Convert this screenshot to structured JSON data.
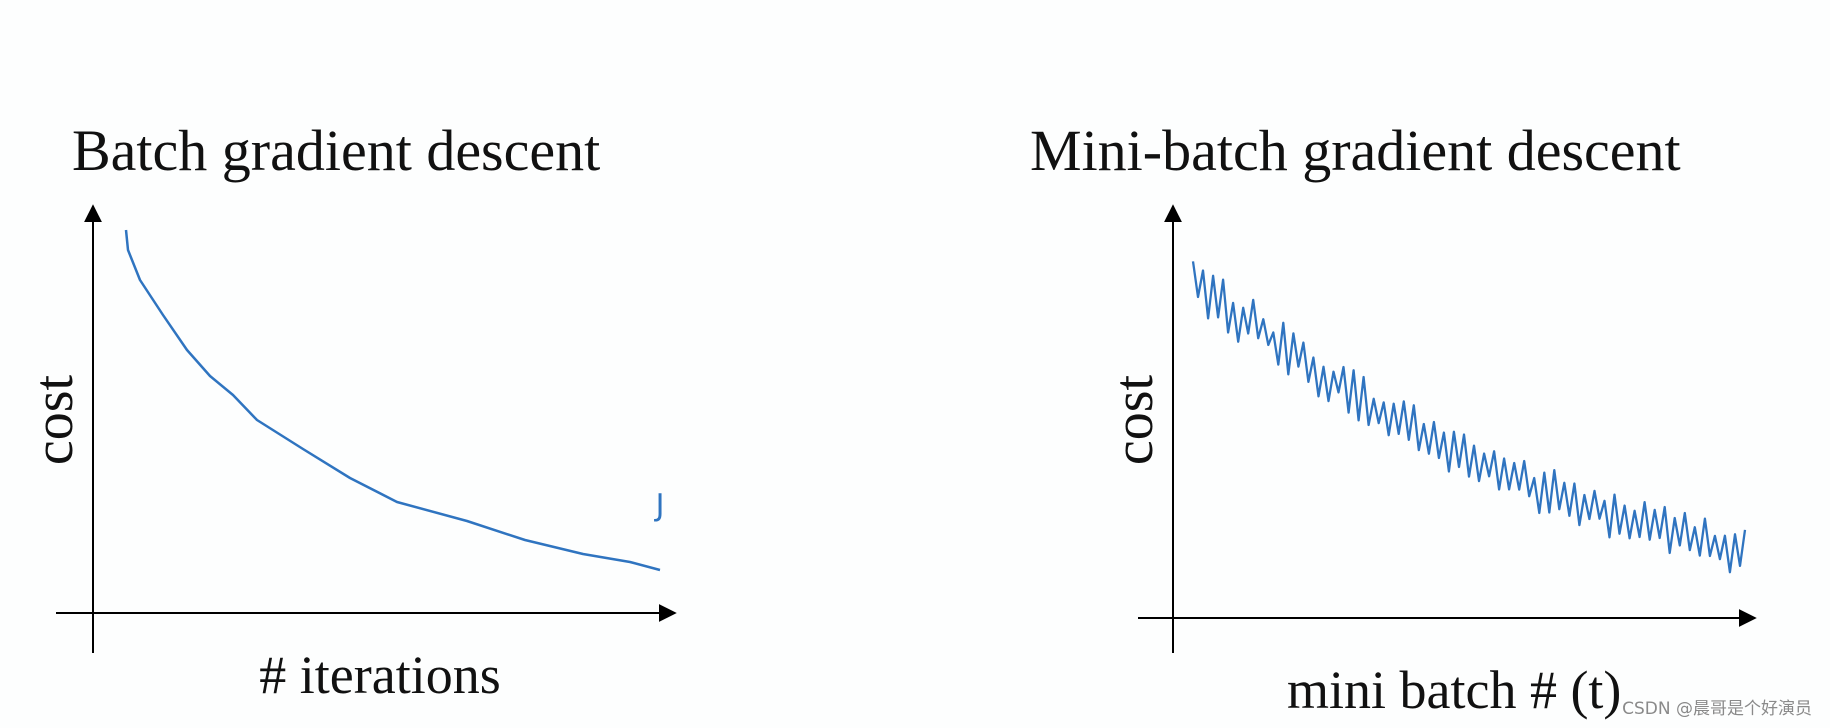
{
  "left": {
    "title": "Batch gradient descent",
    "y_label": "cost",
    "x_label": "# iterations",
    "annotation": "J"
  },
  "right": {
    "title": "Mini-batch gradient descent",
    "y_label": "cost",
    "x_label": "mini batch # (t)"
  },
  "watermark": "CSDN @晨哥是个好演员"
}
